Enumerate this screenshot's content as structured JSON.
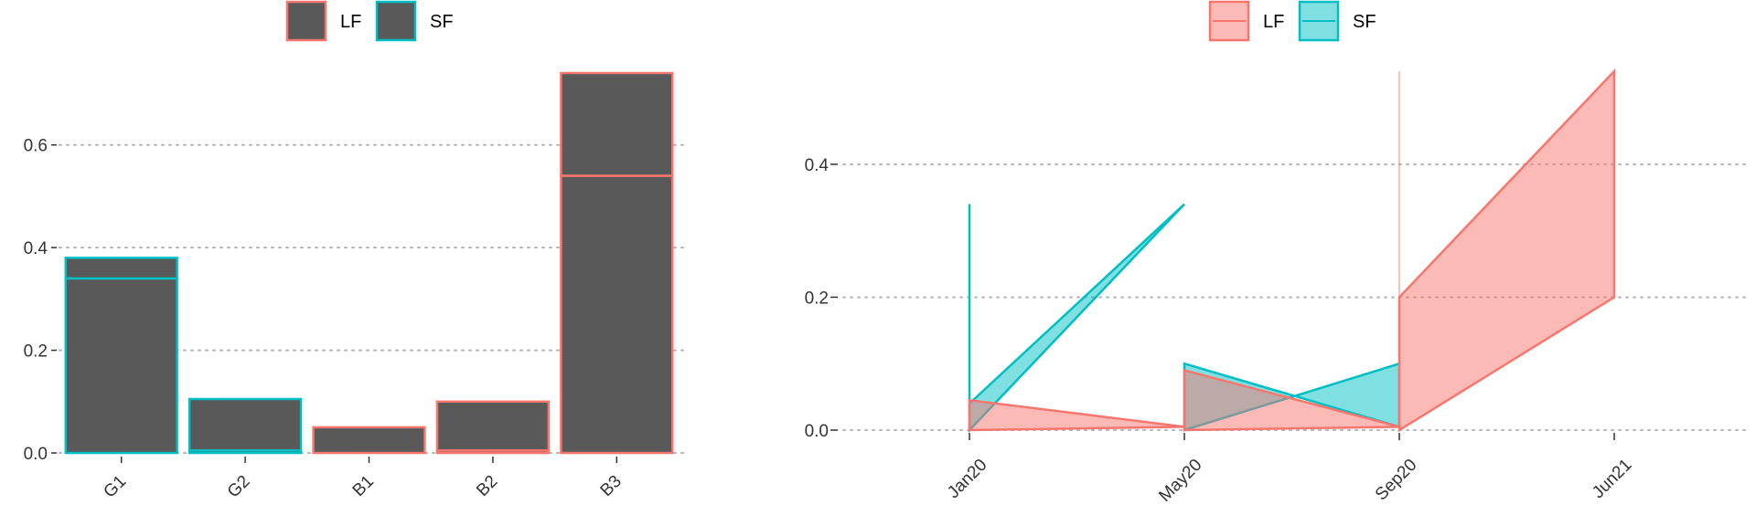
{
  "colors": {
    "lf": "#F8766D",
    "sf": "#00BFC4",
    "bar_fill": "#595959",
    "lf_area": "#F8766D",
    "sf_area": "#00BFC4"
  },
  "chart_data": [
    {
      "type": "bar",
      "stacked": true,
      "categories": [
        "G1",
        "G2",
        "B1",
        "B2",
        "B3"
      ],
      "series": [
        {
          "name": "LF",
          "values": [
            0.34,
            0.005,
            0.05,
            0.005,
            0.54
          ]
        },
        {
          "name": "SF",
          "values": [
            0.04,
            0.1,
            0.0,
            0.095,
            0.2
          ]
        }
      ],
      "outline_series": [
        "SF",
        "SF",
        "LF",
        "LF",
        "LF"
      ],
      "yticks": [
        0.0,
        0.2,
        0.4,
        0.6
      ],
      "ytick_labels": [
        "0.0",
        "0.2",
        "0.4",
        "0.6"
      ],
      "ylim": [
        0,
        0.74
      ],
      "grid": "horizontal dotted",
      "legend": {
        "placement": "top",
        "entries": [
          "LF",
          "SF"
        ]
      }
    },
    {
      "type": "area",
      "x_ticks": [
        "Jan20",
        "May20",
        "Sep20",
        "Jun21"
      ],
      "series": [
        {
          "name": "LF",
          "segments": [
            [
              [
                0,
                0.0
              ],
              [
                0,
                0.045
              ],
              [
                1,
                0.005
              ]
            ],
            [
              [
                1,
                0.0
              ],
              [
                1,
                0.09
              ],
              [
                2,
                0.005
              ]
            ],
            [
              [
                2,
                0.0
              ],
              [
                2,
                0.2
              ],
              [
                3,
                0.54
              ],
              [
                3,
                0.2
              ]
            ]
          ]
        },
        {
          "name": "SF",
          "segments": [
            [
              [
                0,
                0.0
              ],
              [
                0,
                0.34
              ],
              [
                0,
                0.04
              ],
              [
                1,
                0.34
              ]
            ],
            [
              [
                1,
                0.0
              ],
              [
                1,
                0.1
              ],
              [
                2,
                0.005
              ],
              [
                2,
                0.1
              ]
            ]
          ]
        }
      ],
      "vline_at": 2,
      "yticks": [
        0.0,
        0.2,
        0.4
      ],
      "ytick_labels": [
        "0.0",
        "0.2",
        "0.4"
      ],
      "ylim": [
        0,
        0.54
      ],
      "grid": "horizontal dotted",
      "legend": {
        "placement": "top",
        "entries": [
          "LF",
          "SF"
        ]
      }
    }
  ]
}
